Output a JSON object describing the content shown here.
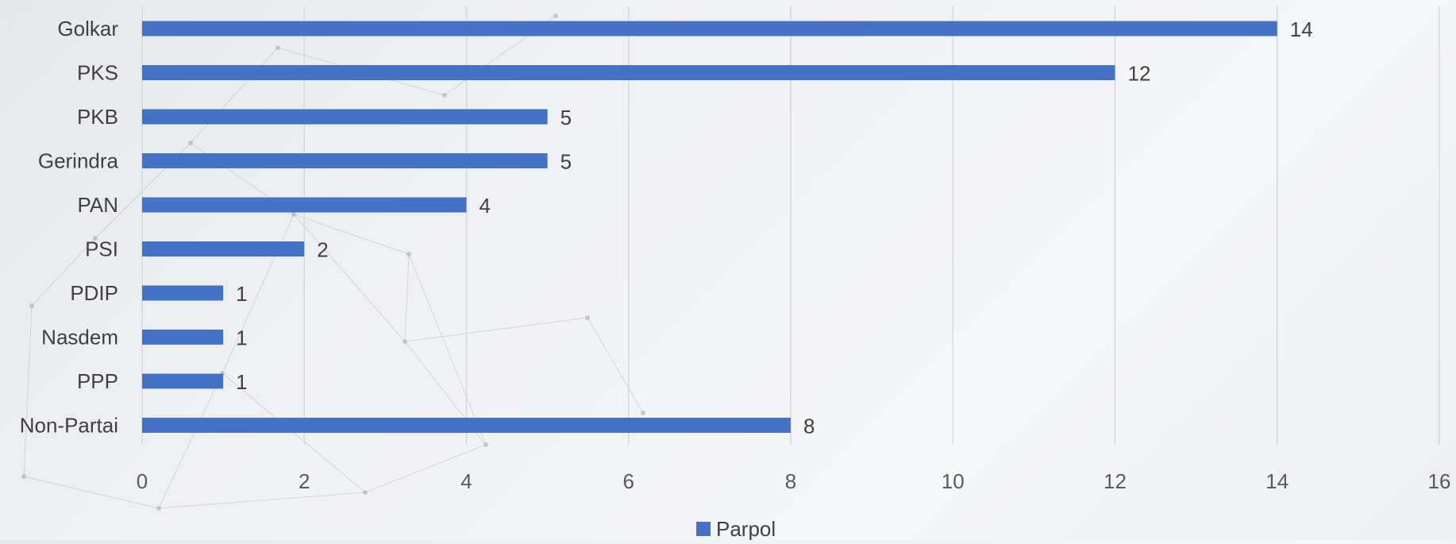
{
  "chart_data": {
    "type": "bar",
    "orientation": "horizontal",
    "categories": [
      "Golkar",
      "PKS",
      "PKB",
      "Gerindra",
      "PAN",
      "PSI",
      "PDIP",
      "Nasdem",
      "PPP",
      "Non-Partai"
    ],
    "series": [
      {
        "name": "Parpol",
        "values": [
          14,
          12,
          5,
          5,
          4,
          2,
          1,
          1,
          1,
          8
        ],
        "color": "#4472C4"
      }
    ],
    "xlim": [
      0,
      16
    ],
    "xticks": [
      0,
      2,
      4,
      6,
      8,
      10,
      12,
      14,
      16
    ],
    "grid": true,
    "legend_position": "bottom",
    "data_labels": true
  }
}
